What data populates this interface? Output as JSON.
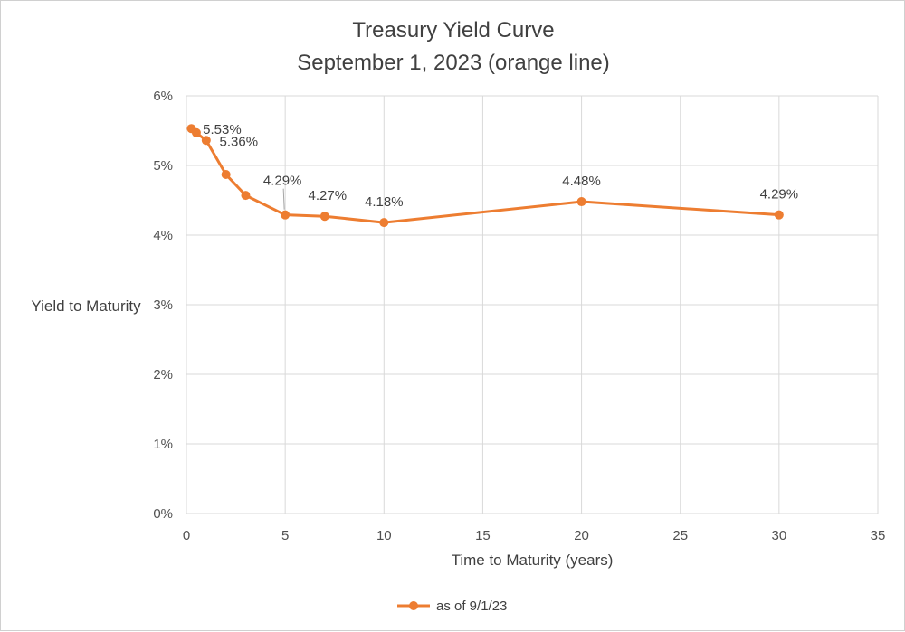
{
  "chart_data": {
    "type": "line",
    "title": "Treasury Yield Curve",
    "subtitle": "September 1, 2023 (orange line)",
    "xlabel": "Time to Maturity (years)",
    "ylabel": "Yield to Maturity",
    "xlim": [
      0,
      35
    ],
    "ylim": [
      0,
      6
    ],
    "x_ticks": [
      "0",
      "5",
      "10",
      "15",
      "20",
      "25",
      "30",
      "35"
    ],
    "y_ticks": [
      "0%",
      "1%",
      "2%",
      "3%",
      "4%",
      "5%",
      "6%"
    ],
    "grid": true,
    "legend_position": "bottom",
    "series": [
      {
        "name": "as of 9/1/23",
        "color": "#ed7d31",
        "x": [
          0.25,
          0.5,
          1,
          2,
          3,
          5,
          7,
          10,
          20,
          30
        ],
        "y": [
          5.53,
          5.47,
          5.36,
          4.87,
          4.57,
          4.29,
          4.27,
          4.18,
          4.48,
          4.29
        ],
        "labels": [
          "5.53%",
          "",
          "5.36%",
          "",
          "",
          "4.29%",
          "4.27%",
          "4.18%",
          "4.48%",
          "4.29%"
        ]
      }
    ]
  }
}
